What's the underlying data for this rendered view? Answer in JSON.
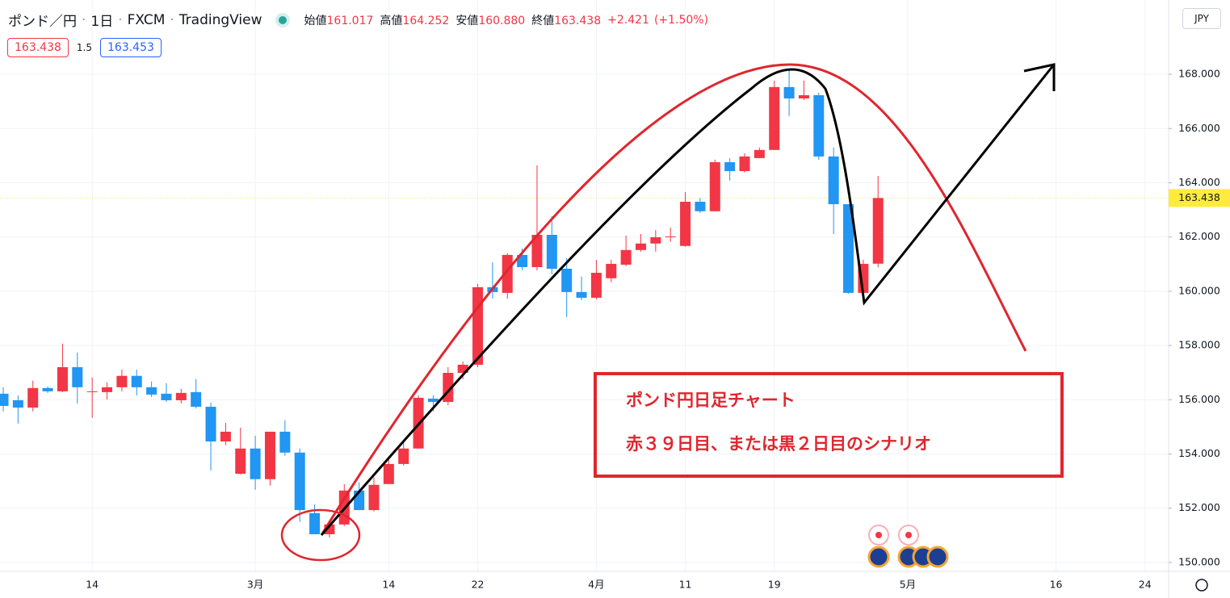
{
  "header": {
    "symbol": "ポンド／円",
    "interval": "1日",
    "source": "FXCM",
    "platform": "TradingView",
    "ohlc": [
      {
        "label": "始値",
        "value": "161.017"
      },
      {
        "label": "高値",
        "value": "164.252"
      },
      {
        "label": "安値",
        "value": "160.880"
      },
      {
        "label": "終値",
        "value": "163.438"
      }
    ],
    "change": "+2.421",
    "change_pct": "(+1.50%)"
  },
  "quote": {
    "sell": "163.438",
    "spread": "1.5",
    "buy": "163.453"
  },
  "currency": "JPY",
  "chart_data": {
    "type": "candlestick",
    "categories": [
      null,
      null,
      null,
      null,
      null,
      null,
      "14",
      null,
      null,
      null,
      null,
      null,
      null,
      null,
      null,
      null,
      null,
      "3月",
      null,
      null,
      null,
      null,
      null,
      null,
      null,
      null,
      "14",
      null,
      null,
      null,
      null,
      null,
      "22",
      null,
      null,
      null,
      null,
      null,
      null,
      null,
      "4月",
      null,
      null,
      null,
      null,
      null,
      "11",
      null,
      null,
      null,
      null,
      null,
      "19",
      null,
      null,
      null,
      null,
      null,
      null,
      null,
      null,
      "5月",
      null,
      null,
      null,
      null,
      null,
      null,
      null,
      null,
      null,
      "16",
      null,
      null,
      null,
      null,
      null,
      "24",
      null
    ],
    "open": [
      156.22,
      155.98,
      155.71,
      156.43,
      156.31,
      157.2,
      156.28,
      156.28,
      156.46,
      156.88,
      156.46,
      156.22,
      155.98,
      156.28,
      155.74,
      154.46,
      153.27,
      154.2,
      153.07,
      154.82,
      154.05,
      151.82,
      151.04,
      151.4,
      152.65,
      151.93,
      152.89,
      153.63,
      154.2,
      156.04,
      155.92,
      156.99,
      157.29,
      160.15,
      159.94,
      161.34,
      160.89,
      162.08,
      160.83,
      159.97,
      159.76,
      160.48,
      160.98,
      161.52,
      161.76,
      161.99,
      161.67,
      163.3,
      162.95,
      164.76,
      164.43,
      164.91,
      165.21,
      167.53,
      167.11,
      167.23,
      164.97,
      163.21,
      159.94,
      161.017,
      null,
      null,
      null,
      null,
      null,
      null,
      null,
      null,
      null,
      null,
      null,
      null,
      null,
      null,
      null,
      null,
      null,
      null,
      null
    ],
    "high": [
      156.46,
      156.16,
      156.7,
      156.49,
      158.07,
      157.74,
      156.82,
      156.64,
      157.11,
      157.11,
      156.67,
      156.61,
      156.4,
      156.76,
      155.89,
      155.15,
      154.97,
      154.67,
      154.82,
      155.24,
      154.2,
      152.14,
      151.49,
      152.89,
      152.95,
      153.13,
      153.84,
      154.52,
      156.16,
      156.16,
      157.2,
      157.41,
      160.27,
      161.07,
      161.4,
      161.58,
      164.64,
      162.77,
      161.22,
      160.54,
      161.16,
      161.16,
      162.05,
      162.11,
      162.26,
      162.35,
      163.66,
      163.44,
      164.85,
      164.91,
      165.09,
      165.3,
      167.77,
      168.21,
      167.77,
      167.32,
      165.3,
      163.21,
      161.16,
      164.252,
      null,
      null,
      null,
      null,
      null,
      null,
      null,
      null,
      null,
      null,
      null,
      null,
      null,
      null,
      null,
      null,
      null,
      null,
      null
    ],
    "low": [
      155.57,
      155.12,
      155.57,
      156.25,
      156.28,
      155.86,
      155.33,
      156.01,
      156.31,
      156.16,
      156.1,
      155.92,
      155.86,
      155.68,
      153.39,
      154.32,
      153.24,
      152.68,
      152.83,
      153.93,
      151.49,
      151.04,
      150.92,
      151.34,
      151.93,
      151.88,
      152.89,
      153.57,
      154.2,
      155.57,
      155.8,
      156.76,
      157.2,
      159.73,
      159.73,
      160.77,
      160.77,
      160.63,
      159.05,
      159.67,
      159.7,
      160.33,
      160.92,
      161.46,
      161.46,
      161.82,
      161.64,
      162.89,
      162.95,
      164.08,
      164.38,
      164.91,
      165.21,
      166.46,
      167.05,
      164.85,
      162.11,
      159.91,
      159.88,
      160.88,
      null,
      null,
      null,
      null,
      null,
      null,
      null,
      null,
      null,
      null,
      null,
      null,
      null,
      null,
      null,
      null,
      null,
      null,
      null
    ],
    "close": [
      155.77,
      155.71,
      156.43,
      156.31,
      157.2,
      156.46,
      156.31,
      156.46,
      156.88,
      156.46,
      156.19,
      155.98,
      156.25,
      155.74,
      154.46,
      154.82,
      154.2,
      153.07,
      154.82,
      154.05,
      151.93,
      151.04,
      151.4,
      152.65,
      151.93,
      152.86,
      153.63,
      154.2,
      156.07,
      155.92,
      156.99,
      157.29,
      160.15,
      159.97,
      161.34,
      160.89,
      162.08,
      160.83,
      159.97,
      159.76,
      160.68,
      161.01,
      161.52,
      161.76,
      161.99,
      162.02,
      163.3,
      162.95,
      164.76,
      164.43,
      164.97,
      165.21,
      167.53,
      167.11,
      167.23,
      164.97,
      163.21,
      159.94,
      161.01,
      163.438,
      null,
      null,
      null,
      null,
      null,
      null,
      null,
      null,
      null,
      null,
      null,
      null,
      null,
      null,
      null,
      null,
      null,
      null,
      null
    ],
    "up_color": "#f23645",
    "down_color": "#2196f3",
    "ylim": [
      149.67,
      170.74
    ],
    "yticks": [
      {
        "value": 150,
        "label": "150.000"
      },
      {
        "value": 152,
        "label": "152.000"
      },
      {
        "value": 154,
        "label": "154.000"
      },
      {
        "value": 156,
        "label": "156.000"
      },
      {
        "value": 158,
        "label": "158.000"
      },
      {
        "value": 160,
        "label": "160.000"
      },
      {
        "value": 162,
        "label": "162.000"
      },
      {
        "value": 164,
        "label": "164.000"
      },
      {
        "value": 166,
        "label": "166.000"
      },
      {
        "value": 168,
        "label": "168.000"
      }
    ],
    "last_price": {
      "value": 163.438,
      "label": "163.438"
    },
    "grid": true,
    "annotations": [
      "ポンド円日足チャート",
      "赤３９日目、または黒２日目のシナリオ"
    ]
  }
}
